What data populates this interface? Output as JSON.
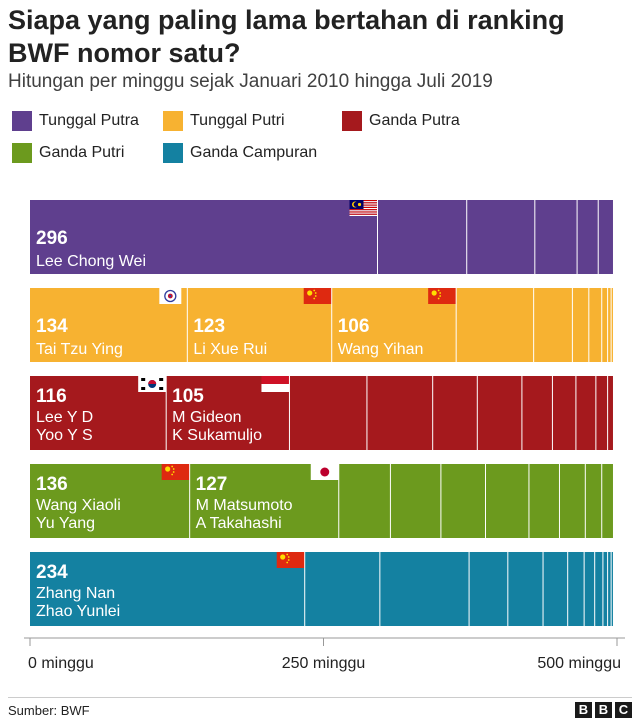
{
  "title": "Siapa yang paling lama bertahan di ranking BWF nomor satu?",
  "subtitle": "Hitungan per minggu sejak Januari 2010 hingga Juli 2019",
  "source": "Sumber: BWF",
  "logo": {
    "letters": [
      "B",
      "B",
      "C"
    ]
  },
  "legend": [
    {
      "label": "Tunggal Putra",
      "color": "#5f3f8e"
    },
    {
      "label": "Tunggal Putri",
      "color": "#f7b231"
    },
    {
      "label": "Ganda Putra",
      "color": "#a5191d"
    },
    {
      "label": "Ganda Putri",
      "color": "#6c9a1e"
    },
    {
      "label": "Ganda Campuran",
      "color": "#1481a1"
    }
  ],
  "chart_data": {
    "type": "bar",
    "orientation": "horizontal-stacked",
    "unit": "minggu",
    "xlim": [
      0,
      500
    ],
    "xticks": [
      {
        "value": 0,
        "label": "0 minggu"
      },
      {
        "value": 250,
        "label": "250 minggu"
      },
      {
        "value": 500,
        "label": "500 minggu"
      }
    ],
    "series": [
      {
        "name": "Tunggal Putra",
        "color": "#5f3f8e",
        "total": 497,
        "segments": [
          {
            "value": 296,
            "lines": [
              "Lee Chong Wei"
            ],
            "flag": "malaysia"
          },
          {
            "value": 76
          },
          {
            "value": 58
          },
          {
            "value": 36
          },
          {
            "value": 18
          },
          {
            "value": 13
          }
        ]
      },
      {
        "name": "Tunggal Putri",
        "color": "#f7b231",
        "total": 497,
        "segments": [
          {
            "value": 134,
            "lines": [
              "Tai Tzu Ying"
            ],
            "flag": "chinese-taipei"
          },
          {
            "value": 123,
            "lines": [
              "Li Xue Rui"
            ],
            "flag": "china"
          },
          {
            "value": 106,
            "lines": [
              "Wang Yihan"
            ],
            "flag": "china"
          },
          {
            "value": 66
          },
          {
            "value": 33
          },
          {
            "value": 14
          },
          {
            "value": 11
          },
          {
            "value": 5
          },
          {
            "value": 3
          },
          {
            "value": 2
          }
        ]
      },
      {
        "name": "Ganda Putra",
        "color": "#a5191d",
        "total": 497,
        "segments": [
          {
            "value": 116,
            "lines": [
              "Lee Y D",
              "Yoo Y S"
            ],
            "flag": "south-korea"
          },
          {
            "value": 105,
            "lines": [
              "M Gideon",
              "K Sukamuljo"
            ],
            "flag": "indonesia"
          },
          {
            "value": 66
          },
          {
            "value": 56
          },
          {
            "value": 38
          },
          {
            "value": 38
          },
          {
            "value": 26
          },
          {
            "value": 20
          },
          {
            "value": 17
          },
          {
            "value": 10
          },
          {
            "value": 5
          }
        ]
      },
      {
        "name": "Ganda Putri",
        "color": "#6c9a1e",
        "total": 497,
        "segments": [
          {
            "value": 136,
            "lines": [
              "Wang Xiaoli",
              "Yu Yang"
            ],
            "flag": "china"
          },
          {
            "value": 127,
            "lines": [
              "M Matsumoto",
              "A Takahashi"
            ],
            "flag": "japan"
          },
          {
            "value": 44
          },
          {
            "value": 43
          },
          {
            "value": 38
          },
          {
            "value": 37
          },
          {
            "value": 26
          },
          {
            "value": 22
          },
          {
            "value": 14
          },
          {
            "value": 10
          }
        ]
      },
      {
        "name": "Ganda Campuran",
        "color": "#1481a1",
        "total": 497,
        "segments": [
          {
            "value": 234,
            "lines": [
              "Zhang Nan",
              "Zhao Yunlei"
            ],
            "flag": "china"
          },
          {
            "value": 64
          },
          {
            "value": 76
          },
          {
            "value": 33
          },
          {
            "value": 30
          },
          {
            "value": 21
          },
          {
            "value": 14
          },
          {
            "value": 9
          },
          {
            "value": 7
          },
          {
            "value": 4
          },
          {
            "value": 3
          },
          {
            "value": 2
          }
        ]
      }
    ]
  }
}
